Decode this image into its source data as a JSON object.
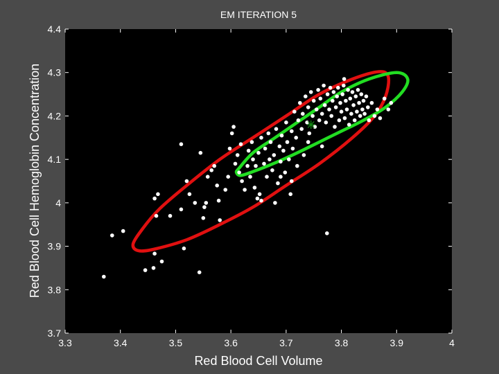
{
  "chart_data": {
    "type": "scatter",
    "title": "EM ITERATION 5",
    "xlabel": "Red Blood Cell Volume",
    "ylabel": "Red Blood Cell Hemoglobin Concentration",
    "xlim": [
      3.3,
      4.0
    ],
    "ylim": [
      3.7,
      4.4
    ],
    "xticks": [
      "3.3",
      "3.4",
      "3.5",
      "3.6",
      "3.7",
      "3.8",
      "3.9",
      "4"
    ],
    "yticks": [
      "3.7",
      "3.8",
      "3.9",
      "4",
      "4.1",
      "4.2",
      "4.3",
      "4.4"
    ],
    "grid": false,
    "background": "#000000",
    "figure_background": "#4a4a4a",
    "points_color": "#ffffff",
    "points": [
      [
        3.37,
        3.83
      ],
      [
        3.385,
        3.925
      ],
      [
        3.405,
        3.935
      ],
      [
        3.445,
        3.845
      ],
      [
        3.46,
        3.85
      ],
      [
        3.462,
        3.883
      ],
      [
        3.465,
        3.97
      ],
      [
        3.475,
        3.865
      ],
      [
        3.462,
        4.01
      ],
      [
        3.468,
        4.02
      ],
      [
        3.49,
        3.97
      ],
      [
        3.51,
        4.135
      ],
      [
        3.515,
        3.895
      ],
      [
        3.51,
        3.985
      ],
      [
        3.52,
        4.05
      ],
      [
        3.525,
        4.02
      ],
      [
        3.535,
        4.0
      ],
      [
        3.545,
        4.115
      ],
      [
        3.543,
        3.84
      ],
      [
        3.55,
        3.965
      ],
      [
        3.552,
        3.99
      ],
      [
        3.555,
        4.0
      ],
      [
        3.558,
        4.06
      ],
      [
        3.565,
        4.075
      ],
      [
        3.57,
        4.085
      ],
      [
        3.575,
        4.04
      ],
      [
        3.578,
        4.005
      ],
      [
        3.58,
        3.96
      ],
      [
        3.59,
        4.03
      ],
      [
        3.595,
        4.06
      ],
      [
        3.598,
        4.125
      ],
      [
        3.602,
        4.16
      ],
      [
        3.605,
        4.175
      ],
      [
        3.608,
        4.09
      ],
      [
        3.612,
        4.11
      ],
      [
        3.615,
        4.07
      ],
      [
        3.618,
        4.135
      ],
      [
        3.62,
        4.05
      ],
      [
        3.625,
        4.03
      ],
      [
        3.63,
        4.085
      ],
      [
        3.632,
        4.12
      ],
      [
        3.635,
        4.06
      ],
      [
        3.638,
        4.14
      ],
      [
        3.64,
        4.1
      ],
      [
        3.643,
        4.035
      ],
      [
        3.645,
        4.085
      ],
      [
        3.648,
        4.01
      ],
      [
        3.65,
        4.115
      ],
      [
        3.652,
        4.02
      ],
      [
        3.655,
        4.15
      ],
      [
        3.66,
        4.09
      ],
      [
        3.662,
        4.125
      ],
      [
        3.665,
        4.06
      ],
      [
        3.668,
        4.16
      ],
      [
        3.67,
        4.1
      ],
      [
        3.672,
        4.14
      ],
      [
        3.675,
        4.075
      ],
      [
        3.678,
        4.11
      ],
      [
        3.68,
        4.0
      ],
      [
        3.682,
        4.17
      ],
      [
        3.685,
        4.045
      ],
      [
        3.688,
        4.13
      ],
      [
        3.69,
        4.095
      ],
      [
        3.692,
        4.155
      ],
      [
        3.695,
        4.12
      ],
      [
        3.698,
        4.07
      ],
      [
        3.7,
        4.185
      ],
      [
        3.702,
        4.14
      ],
      [
        3.705,
        4.1
      ],
      [
        3.708,
        4.02
      ],
      [
        3.71,
        4.165
      ],
      [
        3.712,
        4.125
      ],
      [
        3.715,
        4.21
      ],
      [
        3.718,
        4.15
      ],
      [
        3.72,
        4.085
      ],
      [
        3.722,
        4.19
      ],
      [
        3.725,
        4.23
      ],
      [
        3.728,
        4.17
      ],
      [
        3.73,
        4.205
      ],
      [
        3.732,
        4.11
      ],
      [
        3.735,
        4.245
      ],
      [
        3.738,
        4.185
      ],
      [
        3.74,
        4.22
      ],
      [
        3.742,
        4.16
      ],
      [
        3.745,
        4.255
      ],
      [
        3.748,
        4.2
      ],
      [
        3.75,
        4.235
      ],
      [
        3.752,
        4.175
      ],
      [
        3.755,
        4.215
      ],
      [
        3.758,
        4.26
      ],
      [
        3.76,
        4.19
      ],
      [
        3.762,
        4.24
      ],
      [
        3.765,
        4.205
      ],
      [
        3.768,
        4.27
      ],
      [
        3.77,
        4.225
      ],
      [
        3.772,
        4.185
      ],
      [
        3.774,
        3.93
      ],
      [
        3.775,
        4.25
      ],
      [
        3.778,
        4.215
      ],
      [
        3.78,
        4.265
      ],
      [
        3.782,
        4.2
      ],
      [
        3.784,
        4.235
      ],
      [
        3.786,
        4.255
      ],
      [
        3.788,
        4.175
      ],
      [
        3.79,
        4.22
      ],
      [
        3.792,
        4.245
      ],
      [
        3.794,
        4.265
      ],
      [
        3.796,
        4.19
      ],
      [
        3.798,
        4.23
      ],
      [
        3.8,
        4.21
      ],
      [
        3.802,
        4.25
      ],
      [
        3.804,
        4.27
      ],
      [
        3.806,
        4.195
      ],
      [
        3.808,
        4.235
      ],
      [
        3.81,
        4.215
      ],
      [
        3.812,
        4.26
      ],
      [
        3.814,
        4.18
      ],
      [
        3.816,
        4.24
      ],
      [
        3.818,
        4.205
      ],
      [
        3.82,
        4.255
      ],
      [
        3.822,
        4.225
      ],
      [
        3.824,
        4.19
      ],
      [
        3.826,
        4.245
      ],
      [
        3.828,
        4.21
      ],
      [
        3.83,
        4.26
      ],
      [
        3.832,
        4.23
      ],
      [
        3.834,
        4.2
      ],
      [
        3.836,
        4.25
      ],
      [
        3.838,
        4.215
      ],
      [
        3.84,
        4.235
      ],
      [
        3.842,
        4.205
      ],
      [
        3.845,
        4.245
      ],
      [
        3.848,
        4.22
      ],
      [
        3.85,
        4.19
      ],
      [
        3.855,
        4.23
      ],
      [
        3.86,
        4.2
      ],
      [
        3.865,
        4.215
      ],
      [
        3.87,
        4.195
      ],
      [
        3.878,
        4.24
      ],
      [
        3.885,
        4.215
      ],
      [
        3.89,
        4.23
      ],
      [
        3.805,
        4.285
      ],
      [
        3.765,
        4.13
      ],
      [
        3.74,
        4.14
      ],
      [
        3.69,
        4.06
      ],
      [
        3.655,
        4.005
      ],
      [
        3.71,
        4.05
      ]
    ],
    "center_marker": {
      "x": 3.745,
      "y": 4.18,
      "color": "#138a13",
      "symbol": "asterisk"
    },
    "ellipses": [
      {
        "color": "#e01010",
        "points": [
          [
            3.423,
            3.905
          ],
          [
            3.44,
            3.94
          ],
          [
            3.47,
            3.985
          ],
          [
            3.52,
            4.04
          ],
          [
            3.58,
            4.1
          ],
          [
            3.64,
            4.15
          ],
          [
            3.7,
            4.2
          ],
          [
            3.76,
            4.25
          ],
          [
            3.82,
            4.285
          ],
          [
            3.868,
            4.302
          ],
          [
            3.885,
            4.29
          ],
          [
            3.88,
            4.245
          ],
          [
            3.86,
            4.2
          ],
          [
            3.82,
            4.15
          ],
          [
            3.76,
            4.09
          ],
          [
            3.7,
            4.04
          ],
          [
            3.64,
            3.99
          ],
          [
            3.58,
            3.95
          ],
          [
            3.52,
            3.915
          ],
          [
            3.46,
            3.893
          ],
          [
            3.432,
            3.89
          ],
          [
            3.423,
            3.905
          ]
        ]
      },
      {
        "color": "#22dd22",
        "points": [
          [
            3.615,
            4.08
          ],
          [
            3.64,
            4.115
          ],
          [
            3.68,
            4.15
          ],
          [
            3.72,
            4.185
          ],
          [
            3.76,
            4.22
          ],
          [
            3.8,
            4.255
          ],
          [
            3.85,
            4.285
          ],
          [
            3.9,
            4.3
          ],
          [
            3.92,
            4.285
          ],
          [
            3.91,
            4.255
          ],
          [
            3.88,
            4.22
          ],
          [
            3.84,
            4.19
          ],
          [
            3.8,
            4.165
          ],
          [
            3.76,
            4.14
          ],
          [
            3.72,
            4.115
          ],
          [
            3.68,
            4.092
          ],
          [
            3.64,
            4.072
          ],
          [
            3.618,
            4.063
          ],
          [
            3.61,
            4.07
          ],
          [
            3.615,
            4.08
          ]
        ]
      }
    ]
  }
}
